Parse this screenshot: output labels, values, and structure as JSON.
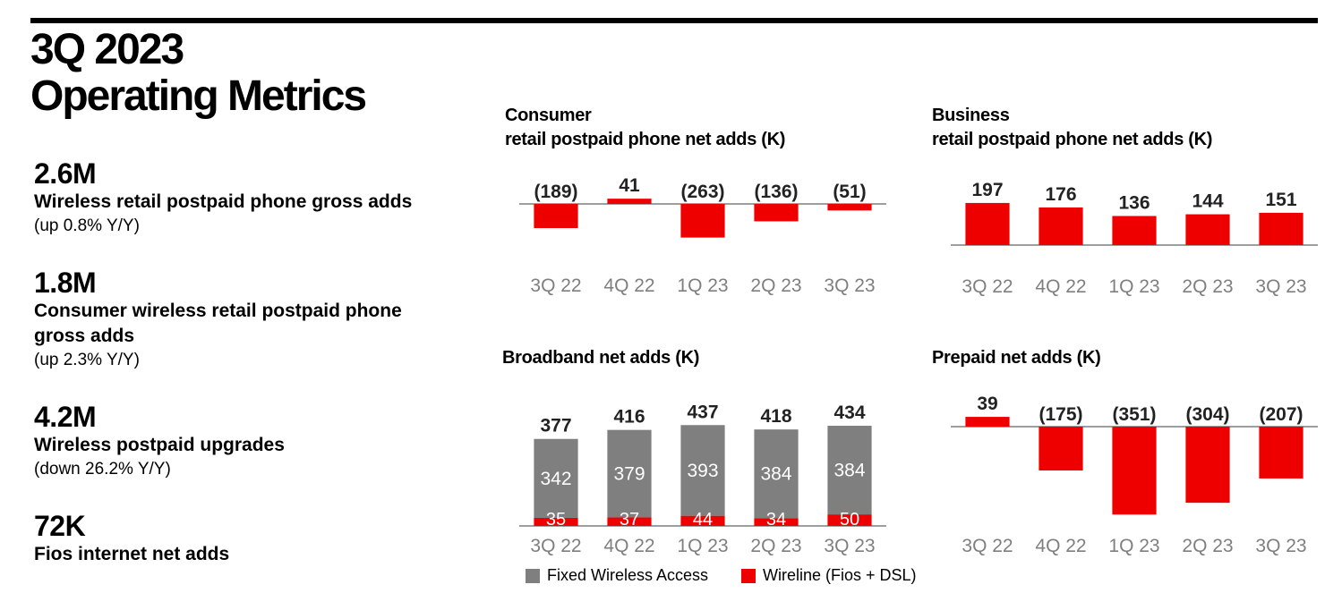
{
  "title": {
    "line1": "3Q 2023",
    "line2": "Operating Metrics"
  },
  "metrics": [
    {
      "value": "2.6M",
      "desc": [
        "Wireless retail postpaid phone gross adds"
      ],
      "note": "(up 0.8% Y/Y)"
    },
    {
      "value": "1.8M",
      "desc": [
        "Consumer wireless retail postpaid phone",
        "gross adds"
      ],
      "note": "(up 2.3% Y/Y)"
    },
    {
      "value": "4.2M",
      "desc": [
        "Wireless postpaid upgrades"
      ],
      "note": "(down 26.2% Y/Y)"
    },
    {
      "value": "72K",
      "desc": [
        "Fios internet net adds"
      ],
      "note": ""
    }
  ],
  "colors": {
    "red": "#ee0000",
    "gray": "#7f7f7f",
    "axis": "#7f7f7f",
    "tick": "#7f7f7f"
  },
  "legend": [
    {
      "label": "Fixed Wireless Access",
      "color": "#7f7f7f"
    },
    {
      "label": "Wireline (Fios + DSL)",
      "color": "#ee0000"
    }
  ],
  "chart_data": [
    {
      "id": "consumer",
      "type": "bar",
      "title": [
        "Consumer",
        "retail postpaid phone net adds (K)"
      ],
      "categories": [
        "3Q 22",
        "4Q 22",
        "1Q 23",
        "2Q 23",
        "3Q 23"
      ],
      "values": [
        -189,
        41,
        -263,
        -136,
        -51
      ],
      "labels": [
        "(189)",
        "41",
        "(263)",
        "(136)",
        "(51)"
      ]
    },
    {
      "id": "business",
      "type": "bar",
      "title": [
        "Business",
        "retail postpaid phone net adds (K)"
      ],
      "categories": [
        "3Q 22",
        "4Q 22",
        "1Q 23",
        "2Q 23",
        "3Q 23"
      ],
      "values": [
        197,
        176,
        136,
        144,
        151
      ],
      "labels": [
        "197",
        "176",
        "136",
        "144",
        "151"
      ]
    },
    {
      "id": "broadband",
      "type": "bar",
      "stacked": true,
      "title": [
        "Broadband net adds (K)"
      ],
      "categories": [
        "3Q 22",
        "4Q 22",
        "1Q 23",
        "2Q 23",
        "3Q 23"
      ],
      "series": [
        {
          "name": "Fixed Wireless Access",
          "values": [
            342,
            379,
            393,
            384,
            384
          ]
        },
        {
          "name": "Wireline (Fios + DSL)",
          "values": [
            35,
            37,
            44,
            34,
            50
          ]
        }
      ],
      "totals": [
        377,
        416,
        437,
        418,
        434
      ]
    },
    {
      "id": "prepaid",
      "type": "bar",
      "title": [
        "Prepaid net adds (K)"
      ],
      "categories": [
        "3Q 22",
        "4Q 22",
        "1Q 23",
        "2Q 23",
        "3Q 23"
      ],
      "values": [
        39,
        -175,
        -351,
        -304,
        -207
      ],
      "labels": [
        "39",
        "(175)",
        "(351)",
        "(304)",
        "(207)"
      ]
    }
  ]
}
